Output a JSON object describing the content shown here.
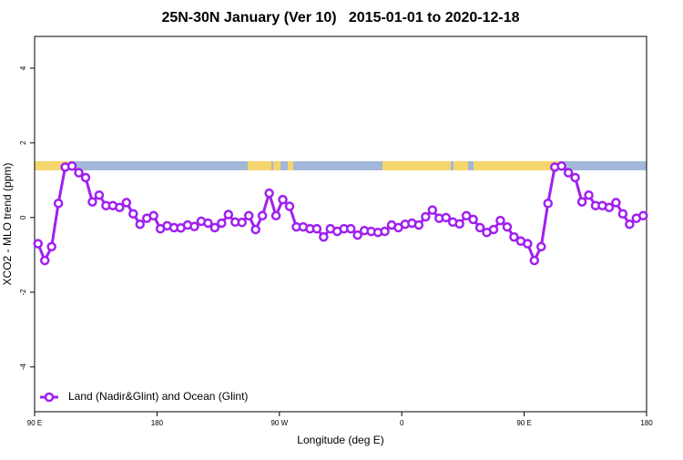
{
  "chart_data": {
    "type": "line",
    "title": "25N-30N January (Ver 10)   2015-01-01 to 2020-12-18",
    "xlabel": "Longitude (deg E)",
    "ylabel": "XCO2 - MLO trend (ppm)",
    "xlim": [
      90,
      540
    ],
    "ylim": [
      -5.2,
      4.85
    ],
    "xticks": [
      {
        "value": 90,
        "label": "90 E"
      },
      {
        "value": 180,
        "label": "180"
      },
      {
        "value": 270,
        "label": "90 W"
      },
      {
        "value": 360,
        "label": "0"
      },
      {
        "value": 450,
        "label": "90 E"
      },
      {
        "value": 540,
        "label": "180"
      }
    ],
    "yticks": [
      -4,
      -2,
      0,
      2,
      4
    ],
    "legend": "bottom-left",
    "x": [
      92.5,
      97.5,
      102.5,
      107.5,
      112.5,
      117.5,
      122.5,
      127.5,
      132.5,
      137.5,
      142.5,
      147.5,
      152.5,
      157.5,
      162.5,
      167.5,
      172.5,
      177.5,
      182.5,
      187.5,
      192.5,
      197.5,
      202.5,
      207.5,
      212.5,
      217.5,
      222.5,
      227.5,
      232.5,
      237.5,
      242.5,
      247.5,
      252.5,
      257.5,
      262.5,
      267.5,
      272.5,
      277.5,
      282.5,
      287.5,
      292.5,
      297.5,
      302.5,
      307.5,
      312.5,
      317.5,
      322.5,
      327.5,
      332.5,
      337.5,
      342.5,
      347.5,
      352.5,
      357.5,
      362.5,
      367.5,
      372.5,
      377.5,
      382.5,
      387.5,
      392.5,
      397.5,
      402.5,
      407.5,
      412.5,
      417.5,
      422.5,
      427.5,
      432.5,
      437.5,
      442.5,
      447.5,
      452.5,
      457.5,
      462.5,
      467.5,
      472.5,
      477.5,
      482.5,
      487.5,
      492.5,
      497.5,
      502.5,
      507.5,
      512.5,
      517.5,
      522.5,
      527.5,
      532.5,
      537.5
    ],
    "series": [
      {
        "name": "Land (Nadir&Glint) and Ocean (Glint)",
        "color": "#a020f0",
        "values": [
          -0.7,
          -1.15,
          -0.78,
          0.38,
          1.35,
          1.38,
          1.2,
          1.07,
          0.42,
          0.6,
          0.32,
          0.32,
          0.27,
          0.4,
          0.1,
          -0.18,
          -0.02,
          0.05,
          -0.3,
          -0.22,
          -0.27,
          -0.28,
          -0.2,
          -0.24,
          -0.1,
          -0.15,
          -0.27,
          -0.15,
          0.08,
          -0.12,
          -0.13,
          0.05,
          -0.32,
          0.05,
          0.65,
          0.05,
          0.48,
          0.3,
          -0.25,
          -0.25,
          -0.3,
          -0.3,
          -0.52,
          -0.3,
          -0.37,
          -0.3,
          -0.3,
          -0.47,
          -0.35,
          -0.37,
          -0.4,
          -0.37,
          -0.2,
          -0.27,
          -0.18,
          -0.15,
          -0.2,
          0.02,
          0.2,
          -0.02,
          0,
          -0.12,
          -0.17,
          0.05,
          -0.05,
          -0.27,
          -0.4,
          -0.32,
          -0.08,
          -0.25,
          -0.52,
          -0.63,
          -0.7,
          -1.15,
          -0.78,
          0.38,
          1.35,
          1.38,
          1.2,
          1.07,
          0.42,
          0.6,
          0.32,
          0.32,
          0.27,
          0.4,
          0.1,
          -0.18,
          -0.02,
          0.05
        ]
      }
    ]
  }
}
